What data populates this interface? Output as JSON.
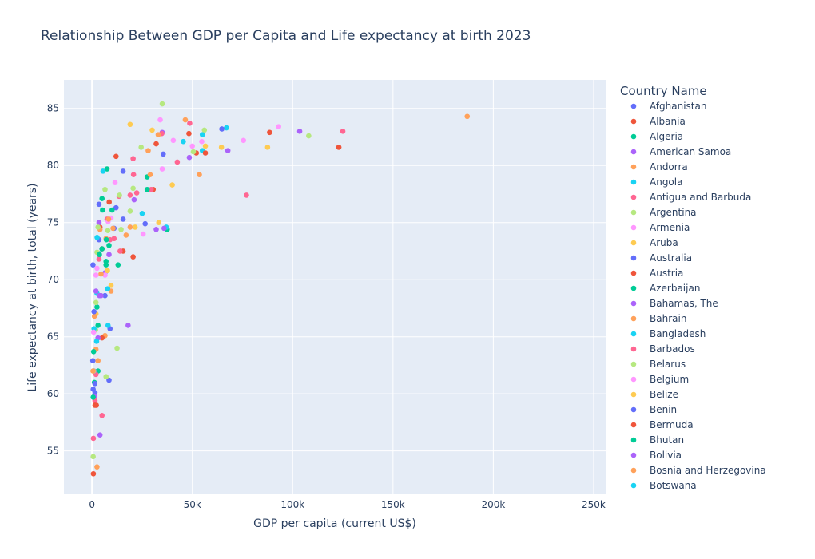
{
  "chart_data": {
    "type": "scatter",
    "title": "Relationship Between GDP per Capita and Life expectancy at birth 2023",
    "xlabel": "GDP per capita (current US$)",
    "ylabel": "Life expectancy at birth, total (years)",
    "xlim": [
      -14000,
      256000
    ],
    "ylim": [
      51.2,
      87.5
    ],
    "xticks": [
      0,
      50000,
      100000,
      150000,
      200000,
      250000
    ],
    "xtick_labels": [
      "0",
      "50k",
      "100k",
      "150k",
      "200k",
      "250k"
    ],
    "yticks": [
      55,
      60,
      65,
      70,
      75,
      80,
      85
    ],
    "ytick_labels": [
      "55",
      "60",
      "65",
      "70",
      "75",
      "80",
      "85"
    ],
    "grid": true,
    "legend_title": "Country Name",
    "legend_position": "right",
    "series": [
      {
        "name": "Afghanistan",
        "color": "#636efa",
        "points": [
          [
            415,
            62.9
          ]
        ]
      },
      {
        "name": "Albania",
        "color": "#EF553B",
        "points": [
          [
            8575,
            76.8
          ]
        ]
      },
      {
        "name": "Algeria",
        "color": "#00cc96",
        "points": [
          [
            5260,
            76.1
          ]
        ]
      },
      {
        "name": "American Samoa",
        "color": "#ab63fa",
        "points": [
          [
            18000,
            66.0
          ]
        ]
      },
      {
        "name": "Andorra",
        "color": "#FFA15A",
        "points": [
          [
            46500,
            84.0
          ]
        ]
      },
      {
        "name": "Angola",
        "color": "#19d3f3",
        "points": [
          [
            2310,
            64.6
          ]
        ]
      },
      {
        "name": "Antigua and Barbuda",
        "color": "#FF6692",
        "points": [
          [
            20700,
            79.2
          ]
        ]
      },
      {
        "name": "Argentina",
        "color": "#B6E880",
        "points": [
          [
            13700,
            77.4
          ]
        ]
      },
      {
        "name": "Armenia",
        "color": "#FF97FF",
        "points": [
          [
            8050,
            75.1
          ]
        ]
      },
      {
        "name": "Aruba",
        "color": "#FECB52",
        "points": [
          [
            33300,
            75.0
          ]
        ]
      },
      {
        "name": "Australia",
        "color": "#636efa",
        "points": [
          [
            64700,
            83.2
          ]
        ]
      },
      {
        "name": "Austria",
        "color": "#EF553B",
        "points": [
          [
            56500,
            81.1
          ]
        ]
      },
      {
        "name": "Azerbaijan",
        "color": "#00cc96",
        "points": [
          [
            7150,
            73.5
          ]
        ]
      },
      {
        "name": "Bahamas, The",
        "color": "#ab63fa",
        "points": [
          [
            35900,
            74.5
          ]
        ]
      },
      {
        "name": "Bahrain",
        "color": "#FFA15A",
        "points": [
          [
            29000,
            79.2
          ]
        ]
      },
      {
        "name": "Bangladesh",
        "color": "#19d3f3",
        "points": [
          [
            2550,
            73.7
          ]
        ]
      },
      {
        "name": "Barbados",
        "color": "#FF6692",
        "points": [
          [
            22300,
            77.6
          ]
        ]
      },
      {
        "name": "Belarus",
        "color": "#B6E880",
        "points": [
          [
            7900,
            74.3
          ]
        ]
      },
      {
        "name": "Belgium",
        "color": "#FF97FF",
        "points": [
          [
            54700,
            82.1
          ]
        ]
      },
      {
        "name": "Belize",
        "color": "#FECB52",
        "points": [
          [
            7700,
            70.8
          ]
        ]
      },
      {
        "name": "Benin",
        "color": "#636efa",
        "points": [
          [
            1430,
            60.9
          ]
        ]
      },
      {
        "name": "Bermuda",
        "color": "#EF553B",
        "points": [
          [
            123000,
            81.6
          ]
        ]
      },
      {
        "name": "Bhutan",
        "color": "#00cc96",
        "points": [
          [
            3700,
            72.2
          ]
        ]
      },
      {
        "name": "Bolivia",
        "color": "#ab63fa",
        "points": [
          [
            3690,
            68.6
          ]
        ]
      },
      {
        "name": "Bosnia and Herzegovina",
        "color": "#FFA15A",
        "points": [
          [
            8300,
            75.3
          ]
        ]
      },
      {
        "name": "Botswana",
        "color": "#19d3f3",
        "points": [
          [
            7800,
            69.2
          ]
        ]
      }
    ],
    "other_points": [
      {
        "color": "#FFA15A",
        "x": 187000,
        "y": 84.3
      },
      {
        "color": "#FF6692",
        "x": 125000,
        "y": 83.0
      },
      {
        "color": "#EF553B",
        "x": 123000,
        "y": 81.6
      },
      {
        "color": "#B6E880",
        "x": 108000,
        "y": 82.6
      },
      {
        "color": "#ab63fa",
        "x": 103500,
        "y": 83.0
      },
      {
        "color": "#FF97FF",
        "x": 93000,
        "y": 83.4
      },
      {
        "color": "#EF553B",
        "x": 88500,
        "y": 82.9
      },
      {
        "color": "#FECB52",
        "x": 87500,
        "y": 81.6
      },
      {
        "color": "#FF6692",
        "x": 77000,
        "y": 77.4
      },
      {
        "color": "#FF97FF",
        "x": 75500,
        "y": 82.2
      },
      {
        "color": "#ab63fa",
        "x": 67700,
        "y": 81.3
      },
      {
        "color": "#19d3f3",
        "x": 67000,
        "y": 83.3
      },
      {
        "color": "#FECB52",
        "x": 64500,
        "y": 81.6
      },
      {
        "color": "#FECB52",
        "x": 56500,
        "y": 81.7
      },
      {
        "color": "#B6E880",
        "x": 56000,
        "y": 83.1
      },
      {
        "color": "#19d3f3",
        "x": 55000,
        "y": 82.7
      },
      {
        "color": "#19d3f3",
        "x": 55000,
        "y": 81.3
      },
      {
        "color": "#FFA15A",
        "x": 53500,
        "y": 79.2
      },
      {
        "color": "#EF553B",
        "x": 52000,
        "y": 81.1
      },
      {
        "color": "#B6E880",
        "x": 50500,
        "y": 81.2
      },
      {
        "color": "#FF97FF",
        "x": 50000,
        "y": 81.7
      },
      {
        "color": "#FF6692",
        "x": 48700,
        "y": 83.7
      },
      {
        "color": "#EF553B",
        "x": 48300,
        "y": 82.8
      },
      {
        "color": "#ab63fa",
        "x": 48500,
        "y": 80.7
      },
      {
        "color": "#19d3f3",
        "x": 45500,
        "y": 82.1
      },
      {
        "color": "#FF6692",
        "x": 42500,
        "y": 80.3
      },
      {
        "color": "#FF97FF",
        "x": 40500,
        "y": 82.2
      },
      {
        "color": "#FECB52",
        "x": 40000,
        "y": 78.3
      },
      {
        "color": "#00cc96",
        "x": 37500,
        "y": 74.4
      },
      {
        "color": "#19d3f3",
        "x": 37000,
        "y": 74.6
      },
      {
        "color": "#636efa",
        "x": 35500,
        "y": 81.0
      },
      {
        "color": "#FF97FF",
        "x": 35000,
        "y": 79.7
      },
      {
        "color": "#B6E880",
        "x": 35000,
        "y": 85.4
      },
      {
        "color": "#ab63fa",
        "x": 35000,
        "y": 82.9
      },
      {
        "color": "#FF6692",
        "x": 34800,
        "y": 82.8
      },
      {
        "color": "#FF97FF",
        "x": 34000,
        "y": 84.0
      },
      {
        "color": "#FFA15A",
        "x": 33000,
        "y": 82.7
      },
      {
        "color": "#EF553B",
        "x": 32000,
        "y": 81.9
      },
      {
        "color": "#ab63fa",
        "x": 32000,
        "y": 74.4
      },
      {
        "color": "#FECB52",
        "x": 30000,
        "y": 83.1
      },
      {
        "color": "#EF553B",
        "x": 30500,
        "y": 77.9
      },
      {
        "color": "#FF6692",
        "x": 29500,
        "y": 77.9
      },
      {
        "color": "#FFA15A",
        "x": 28000,
        "y": 81.3
      },
      {
        "color": "#00cc96",
        "x": 27500,
        "y": 77.9
      },
      {
        "color": "#00cc96",
        "x": 27500,
        "y": 79.0
      },
      {
        "color": "#636efa",
        "x": 26500,
        "y": 74.9
      },
      {
        "color": "#FF97FF",
        "x": 25500,
        "y": 74.0
      },
      {
        "color": "#19d3f3",
        "x": 25000,
        "y": 75.8
      },
      {
        "color": "#B6E880",
        "x": 24500,
        "y": 81.6
      },
      {
        "color": "#FECB52",
        "x": 21500,
        "y": 74.6
      },
      {
        "color": "#ab63fa",
        "x": 21000,
        "y": 77.0
      },
      {
        "color": "#FF6692",
        "x": 20500,
        "y": 80.6
      },
      {
        "color": "#B6E880",
        "x": 20500,
        "y": 78.0
      },
      {
        "color": "#EF553B",
        "x": 20500,
        "y": 72.0
      },
      {
        "color": "#B6E880",
        "x": 19000,
        "y": 76.0
      },
      {
        "color": "#FFA15A",
        "x": 19000,
        "y": 74.6
      },
      {
        "color": "#FF6692",
        "x": 19000,
        "y": 77.4
      },
      {
        "color": "#FECB52",
        "x": 19000,
        "y": 83.6
      },
      {
        "color": "#FFA15A",
        "x": 17000,
        "y": 73.9
      },
      {
        "color": "#636efa",
        "x": 15500,
        "y": 79.5
      },
      {
        "color": "#636efa",
        "x": 15500,
        "y": 75.3
      },
      {
        "color": "#EF553B",
        "x": 15500,
        "y": 72.5
      },
      {
        "color": "#FF6692",
        "x": 14000,
        "y": 72.5
      },
      {
        "color": "#B6E880",
        "x": 14500,
        "y": 74.4
      },
      {
        "color": "#FF6692",
        "x": 13500,
        "y": 77.3
      },
      {
        "color": "#00cc96",
        "x": 13000,
        "y": 71.3
      },
      {
        "color": "#B6E880",
        "x": 12500,
        "y": 64.0
      },
      {
        "color": "#EF553B",
        "x": 12000,
        "y": 80.8
      },
      {
        "color": "#636efa",
        "x": 12000,
        "y": 76.3
      },
      {
        "color": "#FF97FF",
        "x": 11500,
        "y": 78.5
      },
      {
        "color": "#FF6692",
        "x": 11000,
        "y": 73.6
      },
      {
        "color": "#636efa",
        "x": 11000,
        "y": 74.5
      },
      {
        "color": "#FFA15A",
        "x": 10500,
        "y": 74.5
      },
      {
        "color": "#00cc96",
        "x": 10000,
        "y": 76.1
      },
      {
        "color": "#FF97FF",
        "x": 9500,
        "y": 75.4
      },
      {
        "color": "#FECB52",
        "x": 9500,
        "y": 69.5
      },
      {
        "color": "#FFA15A",
        "x": 9500,
        "y": 69.0
      },
      {
        "color": "#FF6692",
        "x": 9000,
        "y": 73.5
      },
      {
        "color": "#636efa",
        "x": 9000,
        "y": 65.7
      },
      {
        "color": "#636efa",
        "x": 8500,
        "y": 61.2
      },
      {
        "color": "#00cc96",
        "x": 8500,
        "y": 73.0
      },
      {
        "color": "#ab63fa",
        "x": 8500,
        "y": 72.2
      },
      {
        "color": "#19d3f3",
        "x": 8000,
        "y": 66.0
      },
      {
        "color": "#00cc96",
        "x": 7500,
        "y": 79.7
      },
      {
        "color": "#FF6692",
        "x": 7500,
        "y": 75.3
      },
      {
        "color": "#B6E880",
        "x": 7000,
        "y": 61.5
      },
      {
        "color": "#FFA15A",
        "x": 7000,
        "y": 73.6
      },
      {
        "color": "#00cc96",
        "x": 7000,
        "y": 71.6
      },
      {
        "color": "#00cc96",
        "x": 7000,
        "y": 71.3
      },
      {
        "color": "#B6E880",
        "x": 6500,
        "y": 77.9
      },
      {
        "color": "#FFA15A",
        "x": 6500,
        "y": 65.1
      },
      {
        "color": "#ab63fa",
        "x": 6500,
        "y": 70.6
      },
      {
        "color": "#FF97FF",
        "x": 6500,
        "y": 70.4
      },
      {
        "color": "#636efa",
        "x": 6500,
        "y": 68.6
      },
      {
        "color": "#19d3f3",
        "x": 5500,
        "y": 79.5
      },
      {
        "color": "#00cc96",
        "x": 5000,
        "y": 77.1
      },
      {
        "color": "#FF6692",
        "x": 5000,
        "y": 58.1
      },
      {
        "color": "#EF553B",
        "x": 5000,
        "y": 72.7
      },
      {
        "color": "#EF553B",
        "x": 5000,
        "y": 64.9
      },
      {
        "color": "#00cc96",
        "x": 5000,
        "y": 72.7
      },
      {
        "color": "#ab63fa",
        "x": 4500,
        "y": 68.6
      },
      {
        "color": "#FFA15A",
        "x": 4500,
        "y": 70.5
      },
      {
        "color": "#ab63fa",
        "x": 4000,
        "y": 56.4
      },
      {
        "color": "#EF553B",
        "x": 4000,
        "y": 74.6
      },
      {
        "color": "#FFA15A",
        "x": 4000,
        "y": 74.4
      },
      {
        "color": "#636efa",
        "x": 3500,
        "y": 76.6
      },
      {
        "color": "#ab63fa",
        "x": 3500,
        "y": 75.0
      },
      {
        "color": "#636efa",
        "x": 3500,
        "y": 73.5
      },
      {
        "color": "#19d3f3",
        "x": 3500,
        "y": 72.3
      },
      {
        "color": "#FF6692",
        "x": 3500,
        "y": 71.8
      },
      {
        "color": "#00cc96",
        "x": 3000,
        "y": 66.0
      },
      {
        "color": "#FFA15A",
        "x": 3000,
        "y": 62.9
      },
      {
        "color": "#ab63fa",
        "x": 3000,
        "y": 64.9
      },
      {
        "color": "#00cc96",
        "x": 3000,
        "y": 62.0
      },
      {
        "color": "#B6E880",
        "x": 3000,
        "y": 74.6
      },
      {
        "color": "#FF97FF",
        "x": 2500,
        "y": 71.0
      },
      {
        "color": "#FFA15A",
        "x": 2500,
        "y": 53.6
      },
      {
        "color": "#B6E880",
        "x": 2500,
        "y": 72.4
      },
      {
        "color": "#00cc96",
        "x": 2500,
        "y": 67.6
      },
      {
        "color": "#19d3f3",
        "x": 2500,
        "y": 68.8
      },
      {
        "color": "#EF553B",
        "x": 2200,
        "y": 59.0
      },
      {
        "color": "#ab63fa",
        "x": 2000,
        "y": 69.0
      },
      {
        "color": "#FF97FF",
        "x": 2000,
        "y": 70.4
      },
      {
        "color": "#B6E880",
        "x": 2000,
        "y": 68.0
      },
      {
        "color": "#FECB52",
        "x": 2000,
        "y": 67.0
      },
      {
        "color": "#FFA15A",
        "x": 2000,
        "y": 63.9
      },
      {
        "color": "#FF6692",
        "x": 2000,
        "y": 61.7
      },
      {
        "color": "#B6E880",
        "x": 1800,
        "y": 65.6
      },
      {
        "color": "#636efa",
        "x": 1500,
        "y": 60.1
      },
      {
        "color": "#FF6692",
        "x": 1500,
        "y": 59.4
      },
      {
        "color": "#EF553B",
        "x": 1500,
        "y": 59.0
      },
      {
        "color": "#00cc96",
        "x": 1200,
        "y": 61.0
      },
      {
        "color": "#FFA15A",
        "x": 1200,
        "y": 66.8
      },
      {
        "color": "#ab63fa",
        "x": 1200,
        "y": 59.8
      },
      {
        "color": "#636efa",
        "x": 1000,
        "y": 67.2
      },
      {
        "color": "#19d3f3",
        "x": 1000,
        "y": 65.7
      },
      {
        "color": "#ab63fa",
        "x": 1000,
        "y": 62.0
      },
      {
        "color": "#B6E880",
        "x": 800,
        "y": 62.0
      },
      {
        "color": "#00cc96",
        "x": 800,
        "y": 63.7
      },
      {
        "color": "#FF97FF",
        "x": 800,
        "y": 65.4
      },
      {
        "color": "#EF553B",
        "x": 700,
        "y": 53.0
      },
      {
        "color": "#FF6692",
        "x": 700,
        "y": 56.1
      },
      {
        "color": "#B6E880",
        "x": 600,
        "y": 54.5
      },
      {
        "color": "#636efa",
        "x": 600,
        "y": 60.4
      },
      {
        "color": "#00cc96",
        "x": 600,
        "y": 59.7
      },
      {
        "color": "#FFA15A",
        "x": 500,
        "y": 62.0
      },
      {
        "color": "#636efa",
        "x": 500,
        "y": 71.3
      }
    ]
  }
}
